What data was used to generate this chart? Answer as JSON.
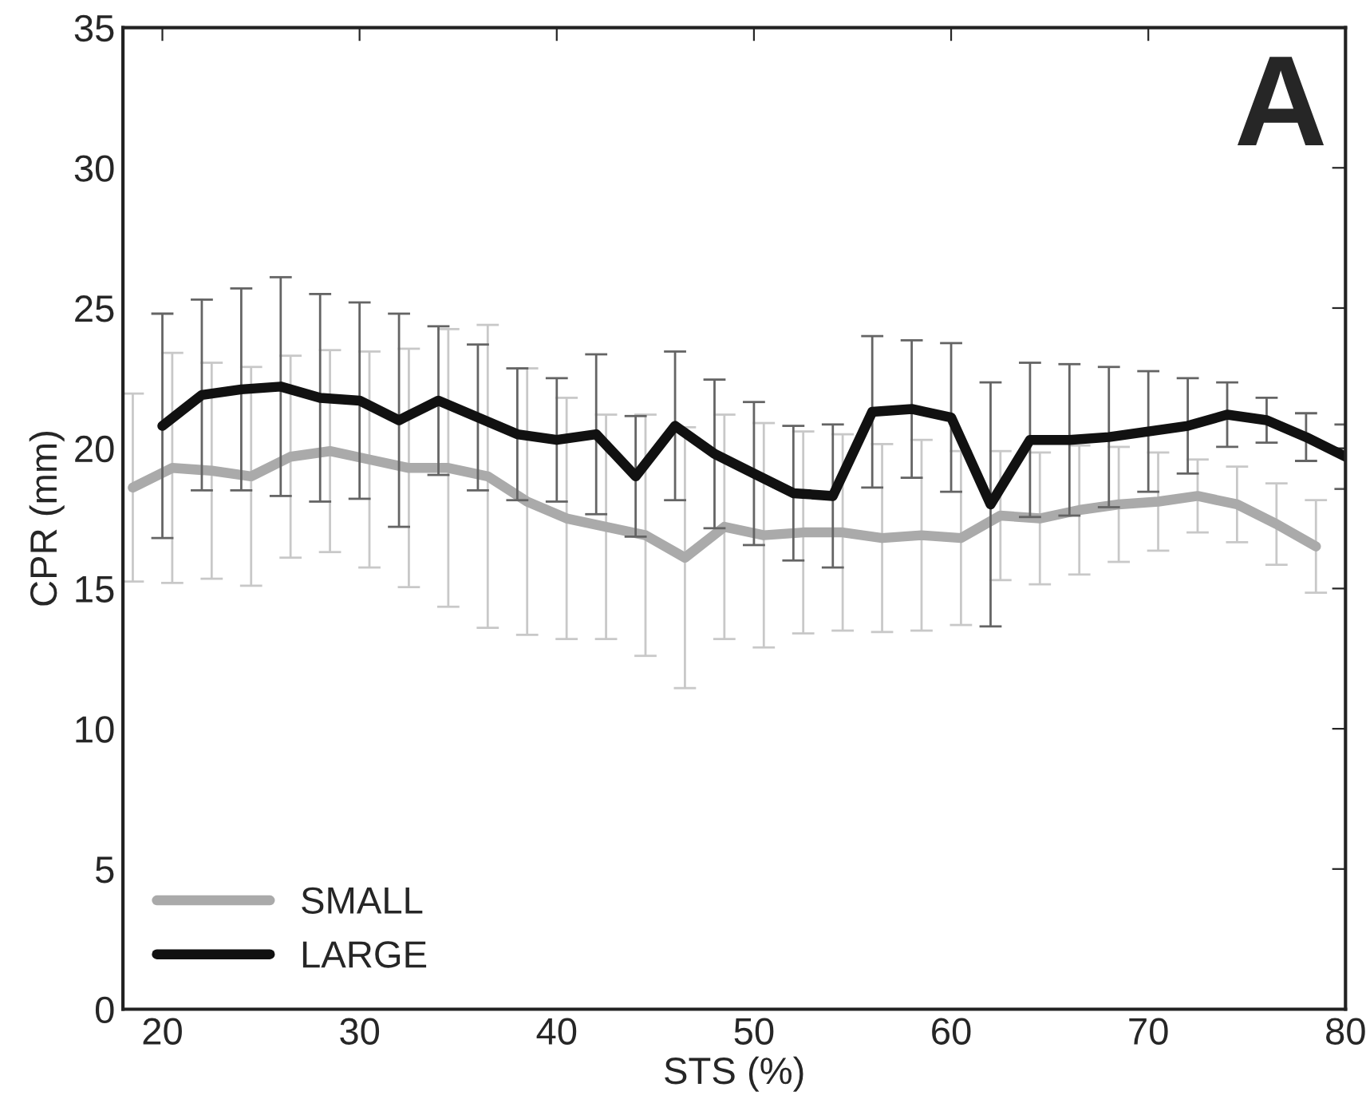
{
  "chart_data": {
    "type": "line",
    "xlabel": "STS (%)",
    "ylabel": "CPR (mm)",
    "annotations": [
      "A"
    ],
    "xlim": [
      18,
      80
    ],
    "ylim": [
      0,
      35
    ],
    "xticks": [
      20,
      30,
      40,
      50,
      60,
      70,
      80
    ],
    "yticks": [
      0,
      5,
      10,
      15,
      20,
      25,
      30,
      35
    ],
    "grid": false,
    "legend": "bottom left",
    "marker": "none",
    "line_style": "solid",
    "series": [
      {
        "name": "SMALL",
        "color": "#aaaaaa",
        "x": [
          18.5,
          20.5,
          22.5,
          24.5,
          26.5,
          28.5,
          30.5,
          32.5,
          34.5,
          36.5,
          38.5,
          40.5,
          42.5,
          44.5,
          46.5,
          48.5,
          50.5,
          52.5,
          54.5,
          56.5,
          58.5,
          60.5,
          62.5,
          64.5,
          66.5,
          68.5,
          70.5,
          72.5,
          74.5,
          76.5,
          78.5
        ],
        "values": [
          18.6,
          19.3,
          19.2,
          19.0,
          19.7,
          19.9,
          19.6,
          19.3,
          19.3,
          19.0,
          18.1,
          17.5,
          17.2,
          16.9,
          16.1,
          17.2,
          16.9,
          17.0,
          17.0,
          16.8,
          16.9,
          16.8,
          17.6,
          17.5,
          17.8,
          18.0,
          18.1,
          18.3,
          18.0,
          17.3,
          16.5
        ],
        "errors": [
          3.35,
          4.1,
          3.85,
          3.9,
          3.6,
          3.6,
          3.85,
          4.25,
          4.95,
          5.4,
          4.75,
          4.3,
          4.0,
          4.3,
          4.65,
          4.0,
          4.0,
          3.6,
          3.5,
          3.35,
          3.4,
          3.1,
          2.3,
          2.35,
          2.3,
          2.05,
          1.75,
          1.3,
          1.35,
          1.45,
          1.65
        ]
      },
      {
        "name": "LARGE",
        "color": "#111111",
        "x": [
          20,
          22,
          24,
          26,
          28,
          30,
          32,
          34,
          36,
          38,
          40,
          42,
          44,
          46,
          48,
          50,
          52,
          54,
          56,
          58,
          60,
          62,
          64,
          66,
          68,
          70,
          72,
          74,
          76,
          78,
          80
        ],
        "values": [
          20.8,
          21.9,
          22.1,
          22.2,
          21.8,
          21.7,
          21.0,
          21.7,
          21.1,
          20.5,
          20.3,
          20.5,
          19.0,
          20.8,
          19.8,
          19.1,
          18.4,
          18.3,
          21.3,
          21.4,
          21.1,
          18.0,
          20.3,
          20.3,
          20.4,
          20.6,
          20.8,
          21.2,
          21.0,
          20.4,
          19.7
        ],
        "errors": [
          4.0,
          3.4,
          3.6,
          3.9,
          3.7,
          3.5,
          3.8,
          2.65,
          2.6,
          2.35,
          2.2,
          2.85,
          2.15,
          2.65,
          2.65,
          2.55,
          2.4,
          2.55,
          2.7,
          2.45,
          2.65,
          4.35,
          2.75,
          2.7,
          2.5,
          2.15,
          1.7,
          1.15,
          0.8,
          0.85,
          1.15
        ]
      }
    ]
  }
}
